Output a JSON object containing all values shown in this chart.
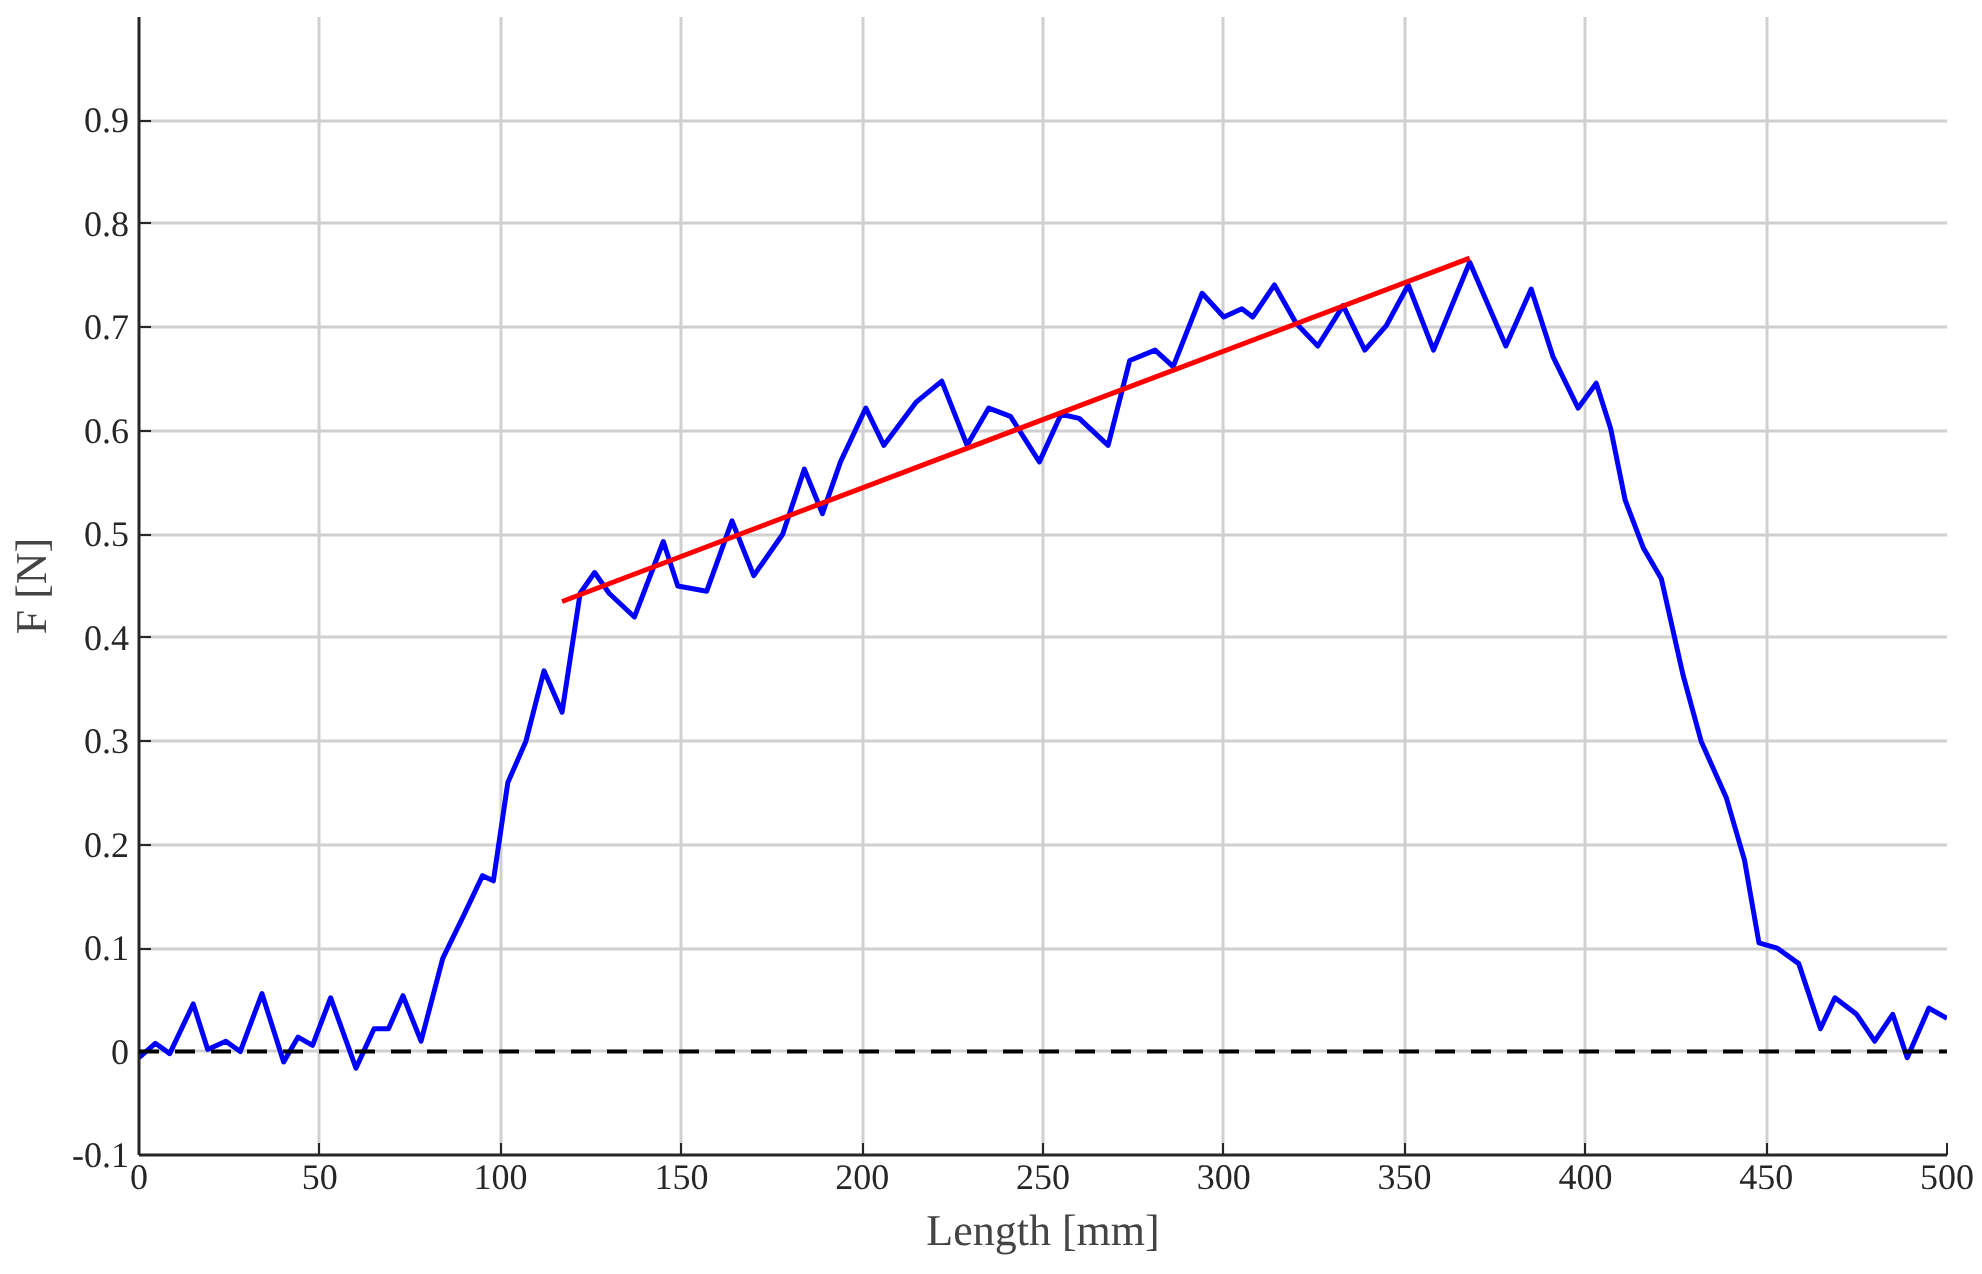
{
  "chart_data": {
    "type": "line",
    "xlabel": "Length [mm]",
    "ylabel": "F [N]",
    "xlim": [
      0,
      500
    ],
    "ylim": [
      -0.1,
      1.0
    ],
    "xticks": [
      0,
      50,
      100,
      150,
      200,
      250,
      300,
      350,
      400,
      450,
      500
    ],
    "yticks": [
      -0.1,
      0,
      0.1,
      0.2,
      0.3,
      0.4,
      0.5,
      0.6,
      0.7,
      0.8,
      0.9
    ],
    "grid": true,
    "marker": "none",
    "line_style": "solid",
    "series": [
      {
        "color": "#0000ff",
        "x": [
          0,
          4.5,
          8.5,
          15,
          19,
          24,
          28,
          34,
          40,
          44,
          48,
          53,
          60,
          65,
          69,
          73,
          78,
          84,
          90,
          95,
          98,
          102,
          107,
          112,
          117,
          122,
          126,
          130,
          137,
          145,
          149,
          157,
          164,
          170,
          178,
          184,
          189,
          194,
          201,
          206,
          215,
          222,
          229,
          235,
          241,
          249,
          255,
          260,
          268,
          274,
          281,
          286,
          294,
          300,
          305,
          308,
          314,
          320,
          326,
          333,
          339,
          345,
          351,
          358,
          368,
          378,
          385,
          391,
          398,
          403,
          407,
          411,
          416,
          421,
          427,
          432,
          439,
          444,
          448,
          453,
          459,
          465,
          469,
          475,
          480,
          485,
          489,
          495,
          500
        ],
        "values": [
          -0.006,
          0.008,
          -0.002,
          0.046,
          0.002,
          0.01,
          0,
          0.056,
          -0.01,
          0.014,
          0.006,
          0.052,
          -0.016,
          0.022,
          0.022,
          0.054,
          0.01,
          0.09,
          0.133,
          0.17,
          0.165,
          0.26,
          0.3,
          0.368,
          0.328,
          0.443,
          0.463,
          0.443,
          0.42,
          0.493,
          0.45,
          0.445,
          0.513,
          0.46,
          0.5,
          0.563,
          0.52,
          0.57,
          0.622,
          0.586,
          0.628,
          0.648,
          0.586,
          0.622,
          0.614,
          0.57,
          0.616,
          0.612,
          0.586,
          0.668,
          0.678,
          0.662,
          0.733,
          0.71,
          0.718,
          0.71,
          0.741,
          0.704,
          0.682,
          0.721,
          0.678,
          0.702,
          0.741,
          0.678,
          0.763,
          0.682,
          0.737,
          0.672,
          0.622,
          0.646,
          0.602,
          0.533,
          0.487,
          0.457,
          0.364,
          0.3,
          0.245,
          0.185,
          0.105,
          0.1,
          0.085,
          0.022,
          0.052,
          0.036,
          0.01,
          0.036,
          -0.006,
          0.042,
          0.032
        ]
      },
      {
        "color": "#ff0000",
        "x": [
          117,
          368
        ],
        "values": [
          0.435,
          0.767
        ]
      }
    ],
    "ref_lines": [
      {
        "axis": "y",
        "value": 0,
        "color": "#000000",
        "line_style": "dashed"
      }
    ]
  }
}
